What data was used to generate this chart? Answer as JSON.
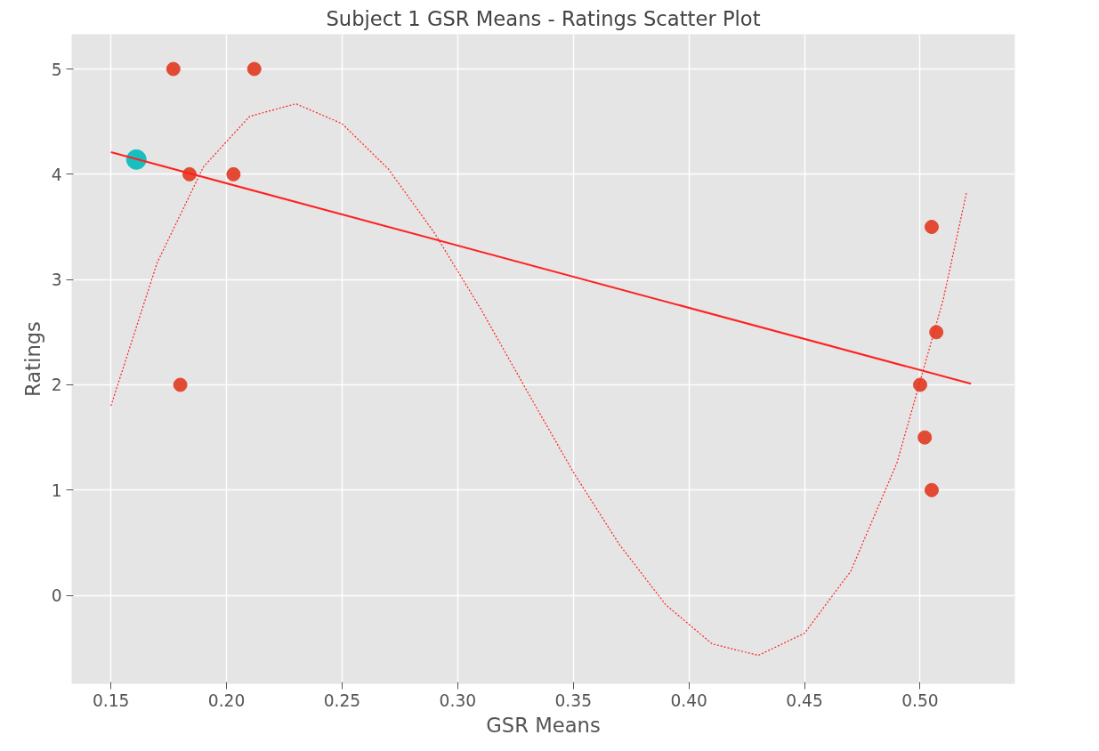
{
  "chart_data": {
    "type": "scatter",
    "title": "Subject 1 GSR Means - Ratings Scatter Plot",
    "xlabel": "GSR Means",
    "ylabel": "Ratings",
    "xlim": [
      0.133,
      0.541
    ],
    "ylim": [
      -0.84,
      5.33
    ],
    "xticks": [
      0.15,
      {
        "value": 0.2,
        "label": "0.20"
      },
      0.25,
      {
        "value": 0.3,
        "label": "0.30"
      },
      0.35,
      {
        "value": 0.4,
        "label": "0.40"
      },
      0.45,
      {
        "value": 0.5,
        "label": "0.50"
      }
    ],
    "yticks": [
      0,
      1,
      2,
      3,
      4,
      5
    ],
    "grid": true,
    "series": [
      {
        "marker": "circle",
        "color": "#e24a33",
        "x": [
          0.177,
          0.212,
          0.184,
          0.203,
          0.18,
          0.505,
          0.507,
          0.5,
          0.502,
          0.505
        ],
        "values": [
          5,
          5,
          4,
          4,
          2,
          3.5,
          2.5,
          2,
          1.5,
          1
        ]
      },
      {
        "marker": "circle",
        "color": "#17bfbf",
        "x": [
          0.161
        ],
        "values": [
          4.14
        ]
      },
      {
        "type": "line",
        "color": "#ff2020",
        "line_style": "solid",
        "x": [
          0.15,
          0.522
        ],
        "values": [
          4.21,
          2.01
        ]
      },
      {
        "type": "line",
        "color": "#ff2020",
        "line_style": "dotted",
        "x": [
          0.15,
          0.17,
          0.19,
          0.21,
          0.23,
          0.25,
          0.27,
          0.29,
          0.31,
          0.33,
          0.35,
          0.37,
          0.39,
          0.41,
          0.43,
          0.45,
          0.47,
          0.49,
          0.51,
          0.52
        ],
        "values": [
          1.8,
          3.16,
          4.07,
          4.55,
          4.67,
          4.48,
          4.05,
          3.44,
          2.72,
          1.94,
          1.17,
          0.48,
          -0.09,
          -0.46,
          -0.57,
          -0.36,
          0.23,
          1.26,
          2.81,
          3.82
        ]
      }
    ]
  }
}
